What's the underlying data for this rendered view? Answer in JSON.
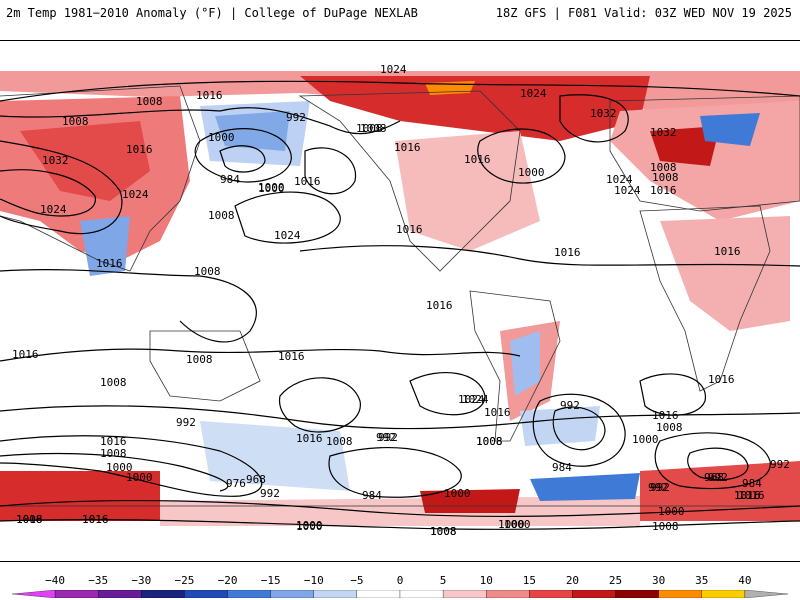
{
  "header": {
    "title_left": "2m Temp 1981−2010 Anomaly (°F) | College of DuPage NEXLAB",
    "title_right": "18Z GFS | F081 Valid: 03Z WED NOV 19 2025"
  },
  "colorbar": {
    "labels": [
      "−40",
      "−35",
      "−30",
      "−25",
      "−20",
      "−15",
      "−10",
      "−5",
      "0",
      "5",
      "10",
      "15",
      "20",
      "25",
      "30",
      "35",
      "40"
    ],
    "colors": [
      "#e040fb",
      "#9c27b0",
      "#6a1b9a",
      "#1a237e",
      "#1e4bb8",
      "#3f7ad6",
      "#7fa6e6",
      "#c2d6f3",
      "#ffffff",
      "#ffffff",
      "#f7c6c6",
      "#ef8a8a",
      "#e64545",
      "#c21818",
      "#8b0000",
      "#ff8c00",
      "#ffcc00",
      "#b0b0b0"
    ]
  },
  "isobar_labels": [
    "1024",
    "1016",
    "1008",
    "1008",
    "992",
    "1000",
    "1008",
    "1016",
    "1024",
    "1032",
    "1016",
    "1016",
    "1000",
    "1024",
    "1008",
    "1032",
    "1016",
    "1016",
    "1024",
    "1008",
    "1032",
    "1016",
    "1024",
    "1000",
    "1024",
    "1024",
    "1008",
    "1016",
    "1008",
    "984",
    "1000",
    "1016",
    "1008",
    "1024",
    "1016",
    "1016",
    "1016",
    "1016",
    "1016",
    "1008",
    "1016",
    "1016",
    "1016",
    "992",
    "1008",
    "1016",
    "1000",
    "1008",
    "1016",
    "992",
    "1016",
    "1008",
    "1008",
    "1000",
    "992",
    "1000",
    "992",
    "1000",
    "976",
    "968",
    "992",
    "1016",
    "1024",
    "992",
    "1008",
    "992",
    "1000",
    "984",
    "1016",
    "1008",
    "984",
    "1000",
    "992",
    "968",
    "984",
    "992",
    "1008",
    "1000",
    "1008",
    "1016",
    "1008",
    "1000",
    "1000",
    "1008",
    "1016"
  ],
  "colors": {
    "warm": "#e64545",
    "warm_light": "#f7c6c6",
    "hot": "#c21818",
    "extreme": "#ff8c00",
    "cool": "#7fa6e6",
    "cold": "#1e4bb8"
  }
}
